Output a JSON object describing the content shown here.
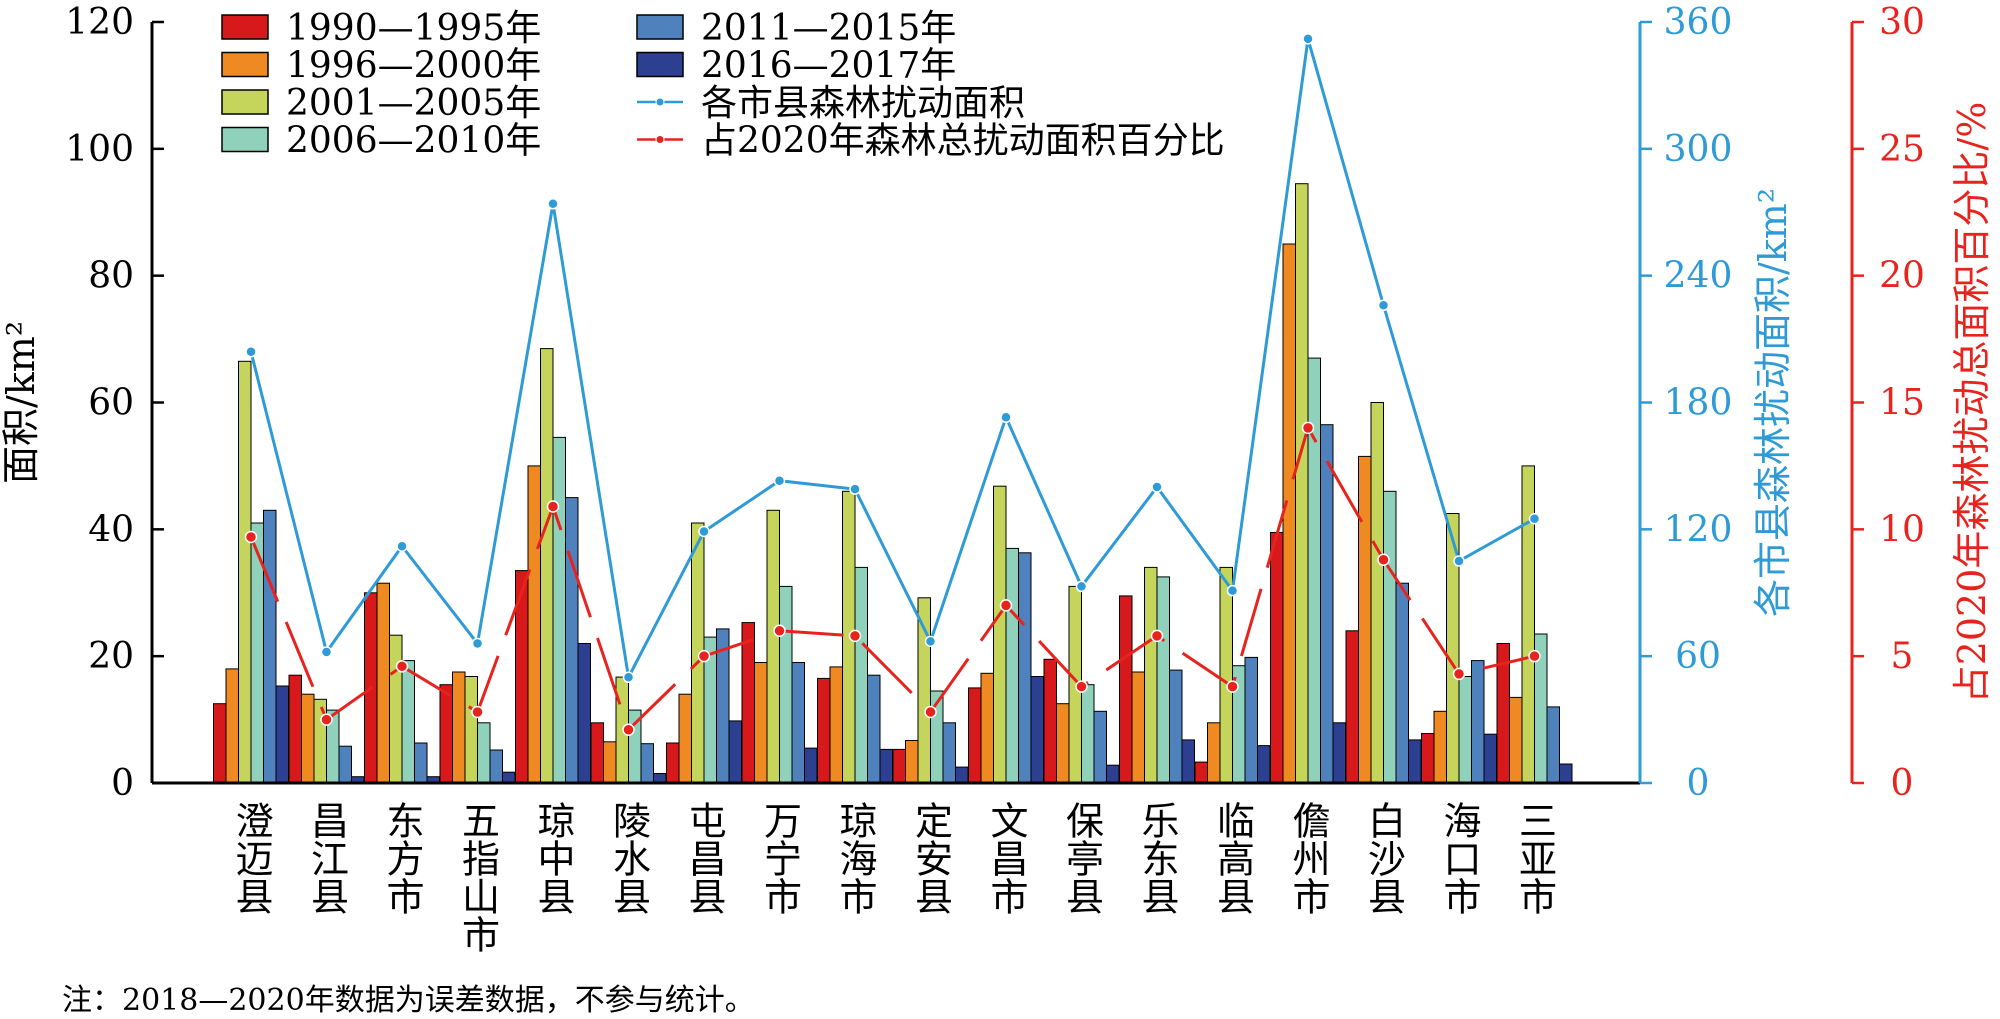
{
  "chart_data": {
    "type": "bar",
    "categories": [
      "澄迈县",
      "昌江县",
      "东方市",
      "五指山市",
      "琼中县",
      "陵水县",
      "屯昌县",
      "万宁市",
      "琼海市",
      "定安县",
      "文昌市",
      "保亭县",
      "乐东县",
      "临高县",
      "儋州市",
      "白沙县",
      "海口市",
      "三亚市"
    ],
    "ylabel": "面积/km²",
    "y2label": "各市县森林扰动面积/km²",
    "y3label": "占2020年森林扰动总面积百分比/%",
    "ylim": [
      0,
      120
    ],
    "y2lim": [
      0,
      360
    ],
    "y3lim": [
      0,
      30
    ],
    "y_ticks": [
      "0",
      "20",
      "40",
      "60",
      "80",
      "100",
      "120"
    ],
    "y2_ticks": [
      "0",
      "60",
      "120",
      "180",
      "240",
      "300",
      "360"
    ],
    "y3_ticks": [
      "0",
      "5",
      "10",
      "15",
      "20",
      "25",
      "30"
    ],
    "legend_position": "top-left",
    "series": [
      {
        "name": "1990—1995年",
        "color": "#d7191c",
        "values": [
          12.5,
          17,
          30,
          15.5,
          33.5,
          9.5,
          6.3,
          25.3,
          16.5,
          5.3,
          15,
          19.5,
          29.5,
          3.3,
          39.5,
          24,
          7.8,
          22
        ]
      },
      {
        "name": "1996—2000年",
        "color": "#ef8a22",
        "values": [
          18,
          14,
          31.5,
          17.5,
          50,
          6.5,
          14,
          19,
          18.3,
          6.7,
          17.3,
          12.5,
          17.5,
          9.5,
          85,
          51.5,
          11.3,
          13.5
        ]
      },
      {
        "name": "2001—2005年",
        "color": "#c5d55b",
        "values": [
          66.5,
          13.2,
          23.3,
          16.8,
          68.5,
          16.7,
          41,
          43,
          46,
          29.2,
          46.8,
          31,
          34,
          34,
          94.5,
          60,
          42.5,
          50
        ]
      },
      {
        "name": "2006—2010年",
        "color": "#8fd1bb",
        "values": [
          41,
          11.5,
          19.3,
          9.5,
          54.5,
          11.5,
          23,
          31,
          34,
          14.5,
          37,
          15.5,
          32.5,
          18.5,
          67,
          46,
          16.8,
          23.5
        ]
      },
      {
        "name": "2011—2015年",
        "color": "#4f81bd",
        "values": [
          43,
          5.8,
          6.3,
          5.2,
          45,
          6.2,
          24.3,
          19,
          17,
          9.5,
          36.3,
          11.3,
          17.8,
          19.8,
          56.5,
          31.5,
          19.3,
          12
        ]
      },
      {
        "name": "2016—2017年",
        "color": "#2c3f91",
        "values": [
          15.3,
          1,
          1,
          1.7,
          22,
          1.5,
          9.8,
          5.5,
          5.3,
          2.5,
          16.8,
          2.8,
          6.8,
          5.9,
          9.5,
          6.8,
          7.7,
          3
        ]
      },
      {
        "name": "各市县森林扰动面积",
        "color": "#2e9bd6",
        "axis": "right",
        "values": [
          204,
          62,
          112,
          66,
          274,
          50,
          119,
          143,
          139,
          67,
          173,
          93,
          140,
          91,
          352,
          226,
          105,
          125
        ]
      },
      {
        "name": "占2020年森林总扰动面积百分比",
        "color": "#e8231e",
        "axis": "right-outer",
        "values": [
          9.7,
          2.5,
          4.6,
          2.8,
          10.9,
          2.1,
          5.0,
          6.0,
          5.8,
          2.8,
          7.0,
          3.8,
          5.8,
          3.8,
          14.0,
          8.8,
          4.3,
          5.0
        ]
      }
    ]
  },
  "note": "注：2018—2020年数据为误差数据，不参与统计。",
  "colors": {
    "left_axis": "#000000",
    "right_axis": "#2e9bd6",
    "outer_right_axis": "#e8231e"
  }
}
